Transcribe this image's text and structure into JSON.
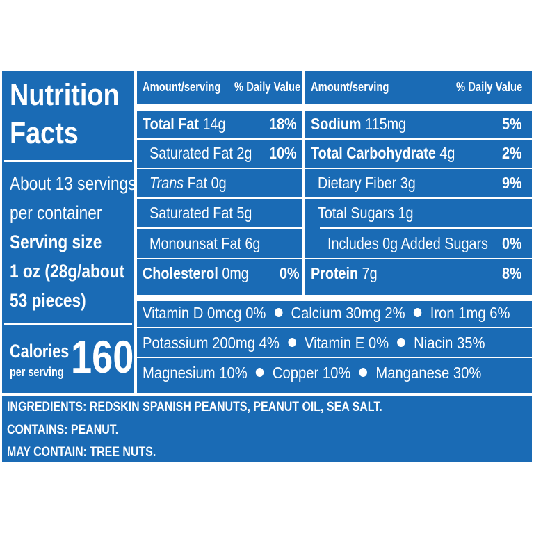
{
  "title_line1": "Nutrition",
  "title_line2": "Facts",
  "servings_line1": "About 13 servings",
  "servings_line2": "per container",
  "serving_size_label": "Serving size",
  "serving_size_line1": "1 oz (28g/about",
  "serving_size_line2": "53 pieces)",
  "calories_label": "Calories",
  "calories_sub": "per serving",
  "calories_value": "160",
  "left_table": {
    "header_amount": "Amount/serving",
    "header_dv": "% Daily Value",
    "rows": [
      {
        "name": "Total Fat",
        "amount": "14g",
        "dv": "18%"
      },
      {
        "name": "Saturated Fat 2g",
        "dv": "10%"
      },
      {
        "name_italic": "Trans",
        "name_rest": "Fat 0g"
      },
      {
        "name": "Saturated Fat 5g"
      },
      {
        "name": "Monounsat Fat 6g"
      },
      {
        "name": "Cholesterol",
        "amount": "0mg",
        "dv": "0%"
      }
    ]
  },
  "right_table": {
    "header_amount": "Amount/serving",
    "header_dv": "% Daily Value",
    "rows": [
      {
        "name": "Sodium",
        "amount": "115mg",
        "dv": "5%"
      },
      {
        "name": "Total Carbohydrate",
        "amount": "4g",
        "dv": "2%"
      },
      {
        "name": "Dietary Fiber 3g",
        "dv": "9%"
      },
      {
        "name": "Total Sugars 1g"
      },
      {
        "name": "Includes 0g Added Sugars",
        "dv": "0%"
      },
      {
        "name": "Protein",
        "amount": "7g",
        "dv": "8%"
      }
    ]
  },
  "vitamins": {
    "row1": [
      "Vitamin D 0mcg 0%",
      "Calcium 30mg 2%",
      "Iron 1mg 6%"
    ],
    "row2": [
      "Potassium 200mg 4%",
      "Vitamin E 0%",
      "Niacin 35%"
    ],
    "row3": [
      "Magnesium 10%",
      "Copper 10%",
      "Manganese 30%"
    ]
  },
  "ingredients": "INGREDIENTS: REDSKIN SPANISH PEANUTS, PEANUT OIL, SEA SALT.",
  "contains": "CONTAINS: PEANUT.",
  "may_contain": "MAY CONTAIN: TREE NUTS.",
  "colors": {
    "background": "#1a6bb5",
    "text": "#ffffff"
  }
}
